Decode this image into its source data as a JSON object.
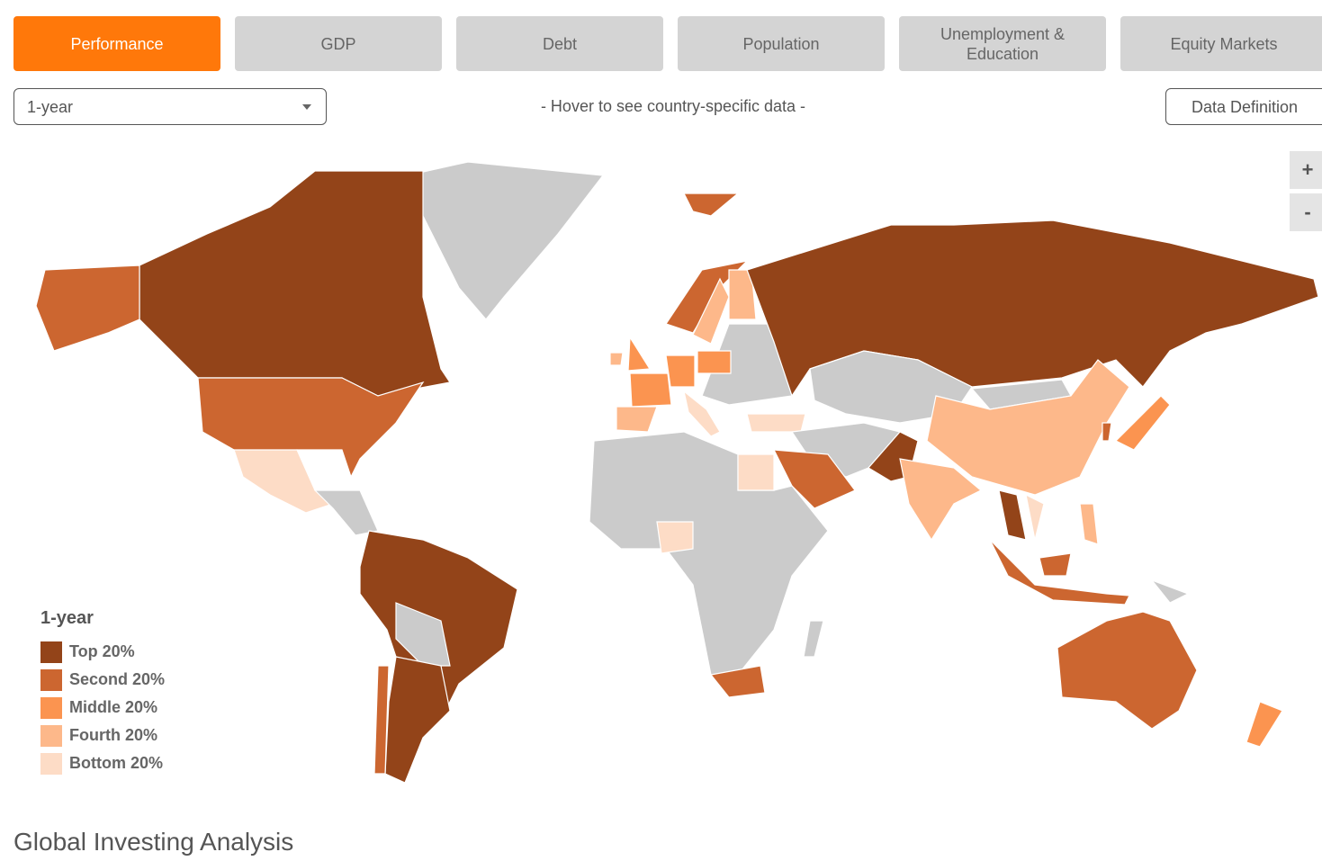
{
  "tabs": [
    {
      "label": "Performance",
      "active": true
    },
    {
      "label": "GDP",
      "active": false
    },
    {
      "label": "Debt",
      "active": false
    },
    {
      "label": "Population",
      "active": false
    },
    {
      "label": "Unemployment & Education",
      "active": false
    },
    {
      "label": "Equity Markets",
      "active": false
    }
  ],
  "dropdown": {
    "selected": "1-year"
  },
  "hover_hint": "- Hover to see country-specific data -",
  "data_definition_button": "Data Definition",
  "zoom": {
    "in": "+",
    "out": "-"
  },
  "legend": {
    "title": "1-year",
    "items": [
      {
        "label": "Top 20%",
        "color": "#934419"
      },
      {
        "label": "Second 20%",
        "color": "#cc6630"
      },
      {
        "label": "Middle 20%",
        "color": "#fb9450"
      },
      {
        "label": "Fourth 20%",
        "color": "#fdb88a"
      },
      {
        "label": "Bottom 20%",
        "color": "#fddcc6"
      }
    ]
  },
  "footer": {
    "title": "Global Investing Analysis"
  }
}
